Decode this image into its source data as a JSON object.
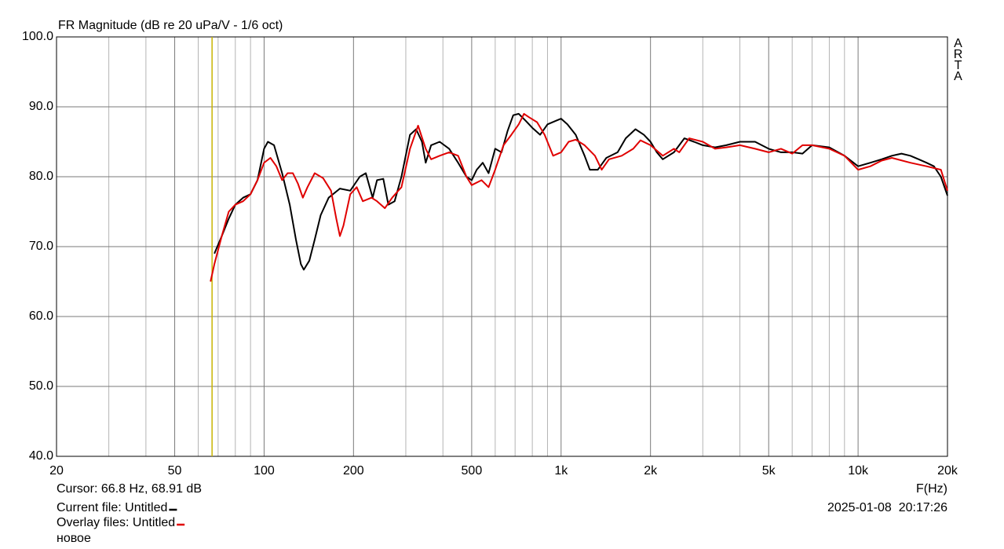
{
  "chart_data": {
    "type": "line",
    "title": "FR Magnitude (dB re 20 uPa/V - 1/6 oct)",
    "side_label": "ARTA",
    "x_label": "F(Hz)",
    "log_x": true,
    "grid": true,
    "xlim": [
      20,
      20000
    ],
    "ylim": [
      40,
      100
    ],
    "xticks": [
      20,
      50,
      100,
      200,
      500,
      {
        "value": 1000,
        "label": "1k"
      },
      {
        "value": 2000,
        "label": "2k"
      },
      {
        "value": 5000,
        "label": "5k"
      },
      {
        "value": 10000,
        "label": "10k"
      },
      {
        "value": 20000,
        "label": "20k"
      }
    ],
    "xminor": [
      30,
      40,
      60,
      70,
      80,
      90,
      300,
      400,
      600,
      700,
      800,
      900,
      3000,
      4000,
      6000,
      7000,
      8000,
      9000
    ],
    "yticks": [
      {
        "value": 40,
        "label": "40.0"
      },
      {
        "value": 50,
        "label": "50.0"
      },
      {
        "value": 60,
        "label": "60.0"
      },
      {
        "value": 70,
        "label": "70.0"
      },
      {
        "value": 80,
        "label": "80.0"
      },
      {
        "value": 90,
        "label": "90.0"
      },
      {
        "value": 100,
        "label": "100.0"
      }
    ],
    "cursor": {
      "label": "Cursor: 66.8 Hz, 68.91 dB",
      "freq": 66.8,
      "color": "#c8b400"
    },
    "current_file_label": "Current file:",
    "overlay_files_label": "Overlay files:",
    "overlay_extra": "новое",
    "timestamp": "2025-01-08  20:17:26",
    "series": [
      {
        "name": "Untitled",
        "color": "#000000",
        "x": [
          68,
          72,
          76,
          80,
          85,
          90,
          95,
          100,
          103,
          108,
          115,
          122,
          128,
          133,
          136,
          142,
          148,
          155,
          165,
          180,
          195,
          210,
          220,
          232,
          240,
          252,
          262,
          275,
          290,
          310,
          325,
          340,
          350,
          365,
          390,
          420,
          450,
          480,
          500,
          520,
          545,
          570,
          600,
          630,
          660,
          690,
          720,
          760,
          800,
          850,
          900,
          960,
          1000,
          1050,
          1120,
          1200,
          1250,
          1330,
          1420,
          1550,
          1650,
          1780,
          1900,
          2000,
          2100,
          2200,
          2400,
          2600,
          2800,
          3000,
          3300,
          3600,
          4000,
          4500,
          5000,
          5500,
          6000,
          6500,
          7000,
          8000,
          9000,
          10000,
          11000,
          12000,
          13000,
          14000,
          15000,
          16000,
          17000,
          18000,
          19000,
          20000
        ],
        "values": [
          69,
          71.5,
          74,
          76,
          77,
          77.5,
          79.5,
          84,
          85,
          84.5,
          80.5,
          76,
          71,
          67.5,
          66.7,
          68,
          71,
          74.5,
          77,
          78.3,
          78,
          80,
          80.5,
          77,
          79.5,
          79.7,
          76,
          76.5,
          80,
          86,
          86.8,
          85,
          82,
          84.5,
          85,
          84,
          82,
          80,
          79.5,
          81,
          82,
          80.5,
          84,
          83.5,
          86.5,
          88.8,
          89,
          88,
          87,
          86,
          87.5,
          88,
          88.3,
          87.5,
          86,
          83,
          81,
          81,
          82.7,
          83.5,
          85.5,
          86.8,
          86,
          85,
          83.5,
          82.5,
          83.5,
          85.5,
          85,
          84.5,
          84.2,
          84.5,
          85,
          85,
          84,
          83.5,
          83.5,
          83.3,
          84.5,
          84.2,
          83,
          81.5,
          82,
          82.5,
          83,
          83.3,
          83,
          82.5,
          82,
          81.5,
          80,
          77.3
        ]
      },
      {
        "name": "Untitled",
        "color": "#e00000",
        "x": [
          66,
          68,
          72,
          76,
          80,
          85,
          90,
          95,
          100,
          105,
          110,
          115,
          120,
          125,
          130,
          135,
          140,
          148,
          158,
          168,
          175,
          180,
          185,
          195,
          205,
          215,
          230,
          240,
          255,
          270,
          290,
          310,
          330,
          350,
          365,
          390,
          420,
          450,
          480,
          500,
          540,
          570,
          600,
          640,
          680,
          720,
          750,
          780,
          830,
          880,
          940,
          1000,
          1060,
          1120,
          1200,
          1300,
          1370,
          1450,
          1600,
          1750,
          1850,
          2000,
          2200,
          2400,
          2500,
          2700,
          3000,
          3300,
          3600,
          4000,
          4500,
          5000,
          5500,
          6000,
          6500,
          7000,
          8000,
          9000,
          10000,
          11000,
          12000,
          13000,
          15000,
          17000,
          19000,
          20000
        ],
        "values": [
          65,
          67.5,
          71.5,
          75,
          76,
          76.5,
          77.5,
          79.5,
          82,
          82.7,
          81.5,
          79.5,
          80.5,
          80.5,
          79,
          77,
          78.5,
          80.5,
          79.8,
          78,
          74,
          71.5,
          73,
          77.5,
          78.5,
          76.5,
          77,
          76.5,
          75.5,
          77,
          78.5,
          84,
          87.3,
          84,
          82.5,
          83,
          83.5,
          83,
          80,
          78.8,
          79.5,
          78.5,
          81,
          84.5,
          86,
          87.5,
          89,
          88.5,
          87.8,
          86,
          83,
          83.5,
          85,
          85.3,
          84.5,
          83,
          81,
          82.5,
          83,
          84,
          85.2,
          84.5,
          83,
          84,
          83.5,
          85.5,
          85,
          84,
          84.2,
          84.5,
          84,
          83.5,
          84,
          83.3,
          84.5,
          84.5,
          84,
          83,
          81,
          81.5,
          82.3,
          82.7,
          82,
          81.5,
          81,
          78
        ]
      }
    ]
  }
}
